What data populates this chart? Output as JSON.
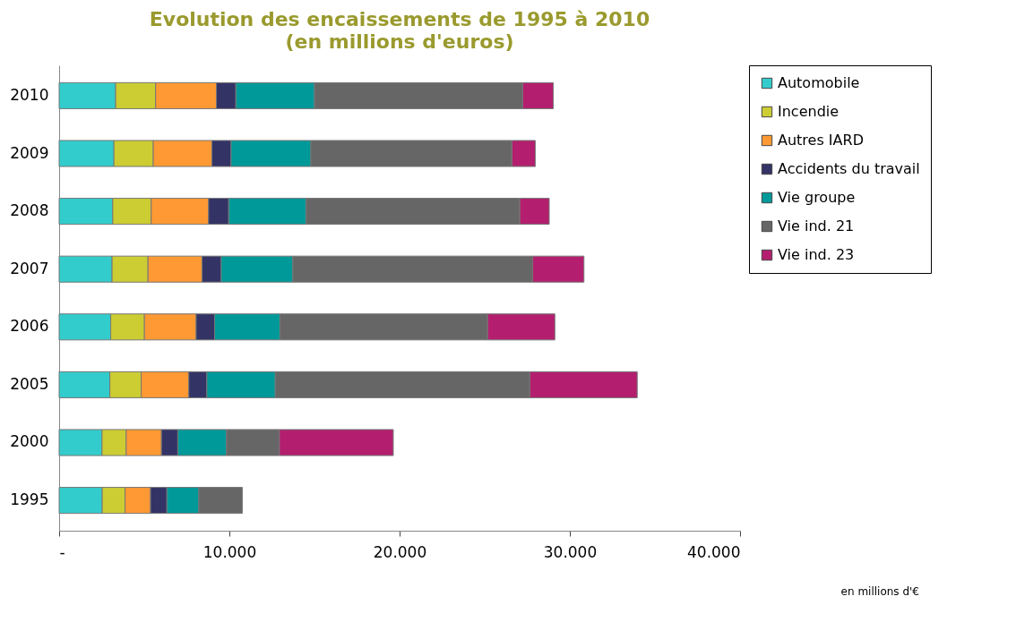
{
  "chart_data": {
    "type": "bar",
    "orientation": "horizontal",
    "stacked": true,
    "title": "Evolution des encaissements de 1995 à 2010",
    "subtitle": "(en millions d'euros)",
    "categories": [
      "2010",
      "2009",
      "2008",
      "2007",
      "2006",
      "2005",
      "2000",
      "1995"
    ],
    "series": [
      {
        "name": "Automobile",
        "color": "#33cccc",
        "values": [
          3320,
          3220,
          3150,
          3110,
          3030,
          2980,
          2520,
          2530
        ]
      },
      {
        "name": "Incendie",
        "color": "#cccc33",
        "values": [
          2350,
          2310,
          2260,
          2110,
          1980,
          1840,
          1420,
          1340
        ]
      },
      {
        "name": "Autres IARD",
        "color": "#ff9933",
        "values": [
          3570,
          3450,
          3370,
          3180,
          3040,
          2800,
          2070,
          1500
        ]
      },
      {
        "name": "Accidents du travail",
        "color": "#333366",
        "values": [
          1140,
          1120,
          1180,
          1120,
          1080,
          1060,
          960,
          960
        ]
      },
      {
        "name": "Vie groupe",
        "color": "#009999",
        "values": [
          4620,
          4690,
          4550,
          4210,
          3840,
          4020,
          2860,
          1880
        ]
      },
      {
        "name": "Vie ind. 21",
        "color": "#666666",
        "values": [
          12230,
          11810,
          12550,
          14090,
          12200,
          14950,
          3110,
          2550
        ]
      },
      {
        "name": "Vie ind. 23",
        "color": "#b31f6e",
        "values": [
          1800,
          1370,
          1730,
          3010,
          3950,
          6310,
          6690,
          null
        ]
      }
    ],
    "xlim": [
      0,
      40000
    ],
    "xticks": [
      {
        "value": 0,
        "label": "-"
      },
      {
        "value": 10000,
        "label": "10.000"
      },
      {
        "value": 20000,
        "label": "20.000"
      },
      {
        "value": 30000,
        "label": "30.000"
      },
      {
        "value": 40000,
        "label": "40.000"
      }
    ],
    "grid": false,
    "legend": "right",
    "annotations": [
      "en millions d'€"
    ]
  }
}
